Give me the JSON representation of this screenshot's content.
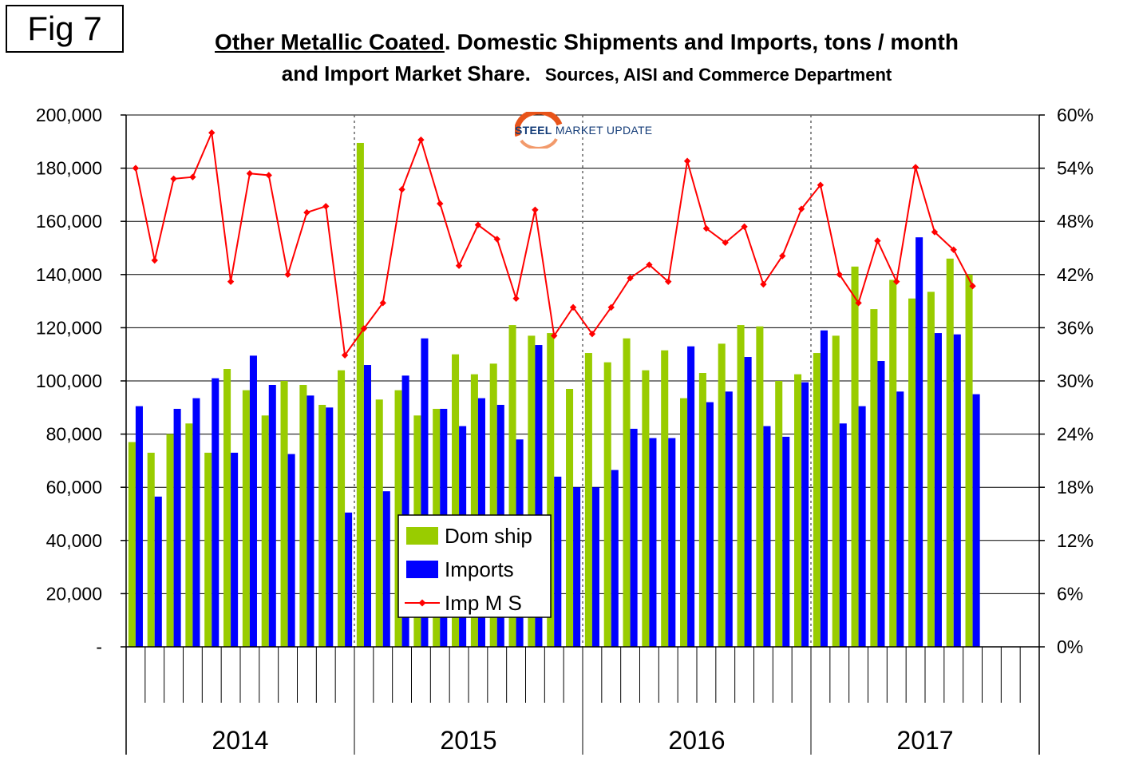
{
  "figure_label": "Fig 7",
  "title": {
    "product": "Other Metallic Coated",
    "line1_rest": ". Domestic Shipments and Imports, tons / month",
    "line2": "and Import Market Share.",
    "sources": "Sources, AISI and Commerce Department"
  },
  "logo": {
    "word1": "STEEL",
    "word2": "MARKET UPDATE",
    "colors": {
      "swoosh": "#e8541a",
      "text": "#143c78"
    }
  },
  "chart_data": {
    "type": "bar",
    "title": "Other Metallic Coated. Domestic Shipments and Imports, tons / month and Import Market Share.",
    "years": [
      "2014",
      "2015",
      "2016",
      "2017"
    ],
    "months_per_year": 12,
    "left_axis": {
      "ylim": [
        0,
        200000
      ],
      "ticks": [
        0,
        20000,
        40000,
        60000,
        80000,
        100000,
        120000,
        140000,
        160000,
        180000,
        200000
      ],
      "tick_labels": [
        "-",
        "20,000",
        "40,000",
        "60,000",
        "80,000",
        "100,000",
        "120,000",
        "140,000",
        "160,000",
        "180,000",
        "200,000"
      ]
    },
    "right_axis": {
      "ylim": [
        0,
        60
      ],
      "ticks": [
        0,
        6,
        12,
        18,
        24,
        30,
        36,
        42,
        48,
        54,
        60
      ],
      "tick_labels": [
        "0%",
        "6%",
        "12%",
        "18%",
        "24%",
        "30%",
        "36%",
        "42%",
        "48%",
        "54%",
        "60%"
      ]
    },
    "grid": true,
    "legend_position": "bottom-center",
    "series": [
      {
        "name": "Dom ship",
        "type": "bar",
        "color": "#99cc00",
        "values": [
          77000,
          73000,
          80000,
          84000,
          73000,
          104500,
          96500,
          87000,
          100000,
          98500,
          91000,
          104000,
          189500,
          93000,
          96500,
          87000,
          89500,
          110000,
          102500,
          106500,
          121000,
          117000,
          118000,
          97000,
          110500,
          107000,
          116000,
          104000,
          111500,
          93500,
          103000,
          114000,
          121000,
          120500,
          100000,
          102500,
          110500,
          117000,
          143000,
          127000,
          138000,
          131000,
          133500,
          146000,
          140000
        ]
      },
      {
        "name": "Imports",
        "type": "bar",
        "color": "#0000ff",
        "values": [
          90500,
          56500,
          89500,
          93500,
          101000,
          73000,
          109500,
          98500,
          72500,
          94500,
          90000,
          50500,
          106000,
          58500,
          102000,
          116000,
          89500,
          83000,
          93500,
          91000,
          78000,
          113500,
          64000,
          60000,
          60000,
          66500,
          82000,
          78500,
          78500,
          113000,
          92000,
          96000,
          109000,
          83000,
          79000,
          99500,
          119000,
          84000,
          90500,
          107500,
          96000,
          154000,
          118000,
          117500,
          95000
        ]
      },
      {
        "name": "Imp M S",
        "type": "line",
        "color": "#ff0000",
        "axis": "right",
        "values": [
          54.0,
          43.6,
          52.8,
          53.0,
          58.0,
          41.2,
          53.4,
          53.2,
          42.0,
          49.0,
          49.7,
          32.9,
          35.9,
          38.8,
          51.6,
          57.2,
          50.0,
          43.0,
          47.6,
          46.0,
          39.3,
          49.3,
          35.1,
          38.3,
          35.3,
          38.3,
          41.6,
          43.1,
          41.2,
          54.8,
          47.2,
          45.6,
          47.4,
          40.9,
          44.1,
          49.4,
          52.1,
          42.0,
          38.8,
          45.8,
          41.2,
          54.1,
          46.8,
          44.8,
          40.7
        ]
      }
    ]
  }
}
